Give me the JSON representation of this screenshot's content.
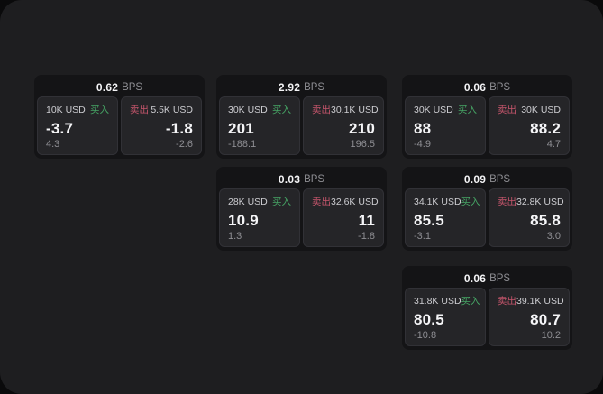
{
  "labels": {
    "buy": "买入",
    "sell": "卖出",
    "bps_unit": "BPS"
  },
  "colors": {
    "buy_green": "#46a565",
    "sell_red": "#c4556b",
    "surface": "#1e1e20",
    "card": "#141416",
    "panel": "#252528"
  },
  "cards": [
    {
      "row": 0,
      "col": 0,
      "bps": "0.62",
      "buy": {
        "amount": "10K USD",
        "price": "-3.7",
        "delta": "4.3"
      },
      "sell": {
        "amount": "5.5K USD",
        "price": "-1.8",
        "delta": "-2.6"
      }
    },
    {
      "row": 0,
      "col": 1,
      "bps": "2.92",
      "buy": {
        "amount": "30K USD",
        "price": "201",
        "delta": "-188.1"
      },
      "sell": {
        "amount": "30.1K USD",
        "price": "210",
        "delta": "196.5"
      }
    },
    {
      "row": 0,
      "col": 2,
      "bps": "0.06",
      "buy": {
        "amount": "30K USD",
        "price": "88",
        "delta": "-4.9"
      },
      "sell": {
        "amount": "30K USD",
        "price": "88.2",
        "delta": "4.7"
      }
    },
    {
      "row": 1,
      "col": 1,
      "bps": "0.03",
      "buy": {
        "amount": "28K USD",
        "price": "10.9",
        "delta": "1.3"
      },
      "sell": {
        "amount": "32.6K USD",
        "price": "11",
        "delta": "-1.8"
      }
    },
    {
      "row": 1,
      "col": 2,
      "bps": "0.09",
      "buy": {
        "amount": "34.1K USD",
        "price": "85.5",
        "delta": "-3.1"
      },
      "sell": {
        "amount": "32.8K USD",
        "price": "85.8",
        "delta": "3.0"
      }
    },
    {
      "row": 2,
      "col": 2,
      "bps": "0.06",
      "buy": {
        "amount": "31.8K USD",
        "price": "80.5",
        "delta": "-10.8"
      },
      "sell": {
        "amount": "39.1K USD",
        "price": "80.7",
        "delta": "10.2"
      }
    }
  ]
}
